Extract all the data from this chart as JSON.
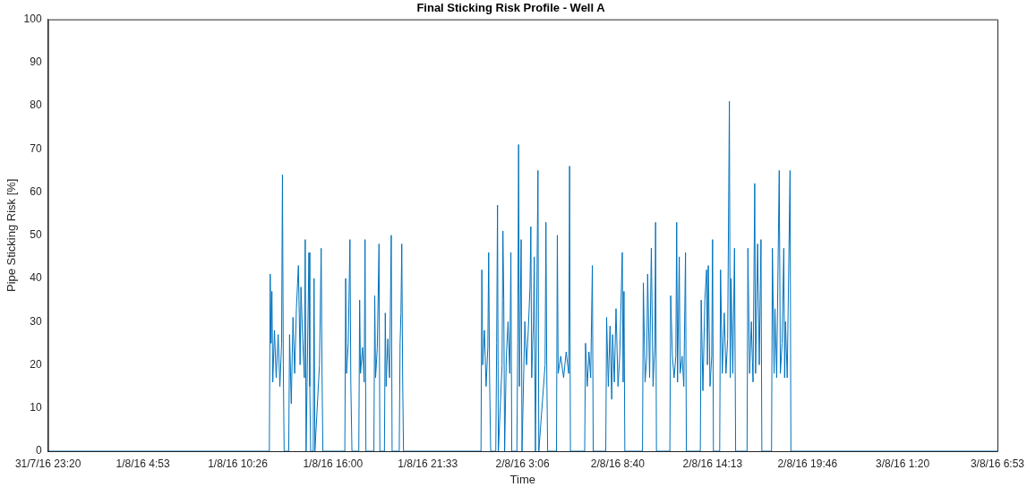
{
  "chart_data": {
    "type": "line",
    "title": "Final Sticking Risk Profile - Well A",
    "xlabel": "Time",
    "ylabel": "Pipe Sticking Risk [%]",
    "xlim": [
      "--07-31T23:20",
      "--08-03T06:53"
    ],
    "xticks": [
      {
        "value": "--07-31T23:20",
        "label": "31/7/16 23:20"
      },
      {
        "value": "--08-01T04:53",
        "label": "1/8/16 4:53"
      },
      {
        "value": "--08-01T10:26",
        "label": "1/8/16 10:26"
      },
      {
        "value": "--08-01T16:00",
        "label": "1/8/16 16:00"
      },
      {
        "value": "--08-01T21:33",
        "label": "1/8/16 21:33"
      },
      {
        "value": "--08-02T03:06",
        "label": "2/8/16 3:06"
      },
      {
        "value": "--08-02T08:40",
        "label": "2/8/16 8:40"
      },
      {
        "value": "--08-02T14:13",
        "label": "2/8/16 14:13"
      },
      {
        "value": "--08-02T19:46",
        "label": "2/8/16 19:46"
      },
      {
        "value": "--08-03T01:20",
        "label": "3/8/16 1:20"
      },
      {
        "value": "--08-03T06:53",
        "label": "3/8/16 6:53"
      }
    ],
    "ylim": [
      0,
      100
    ],
    "yticks": [
      0,
      10,
      20,
      30,
      40,
      50,
      60,
      70,
      80,
      90,
      100
    ],
    "grid": false,
    "legend": false,
    "marker": "none",
    "line_style": "solid",
    "series": [
      {
        "color": "#0072bd",
        "x": [
          "--07-31T23:20",
          "--08-01T12:17",
          "--08-01T12:20",
          "--08-01T12:23",
          "--08-01T12:26",
          "--08-01T12:29",
          "--08-01T12:35",
          "--08-01T12:41",
          "--08-01T12:48",
          "--08-01T12:54",
          "--08-01T13:00",
          "--08-01T13:03",
          "--08-01T13:06",
          "--08-01T13:09",
          "--08-01T13:25",
          "--08-01T13:28",
          "--08-01T13:34",
          "--08-01T13:40",
          "--08-01T13:46",
          "--08-01T13:52",
          "--08-01T13:59",
          "--08-01T14:05",
          "--08-01T14:08",
          "--08-01T14:14",
          "--08-01T14:20",
          "--08-01T14:23",
          "--08-01T14:26",
          "--08-01T14:36",
          "--08-01T14:39",
          "--08-01T14:42",
          "--08-01T14:51",
          "--08-01T14:54",
          "--08-01T14:57",
          "--08-01T15:13",
          "--08-01T15:16",
          "--08-01T15:19",
          "--08-01T15:22",
          "--08-01T15:25",
          "--08-01T16:42",
          "--08-01T16:45",
          "--08-01T16:48",
          "--08-01T16:54",
          "--08-01T17:00",
          "--08-01T17:03",
          "--08-01T17:07",
          "--08-01T17:31",
          "--08-01T17:34",
          "--08-01T17:37",
          "--08-01T17:44",
          "--08-01T17:50",
          "--08-01T17:53",
          "--08-01T17:56",
          "--08-01T18:24",
          "--08-01T18:27",
          "--08-01T18:30",
          "--08-01T18:36",
          "--08-01T18:42",
          "--08-01T18:45",
          "--08-01T19:01",
          "--08-01T19:04",
          "--08-01T19:07",
          "--08-01T19:13",
          "--08-01T19:19",
          "--08-01T19:25",
          "--08-01T19:28",
          "--08-01T19:53",
          "--08-01T19:56",
          "--08-01T19:59",
          "--08-01T20:02",
          "--08-01T20:05",
          "--08-01T20:08",
          "--08-02T00:40",
          "--08-02T00:43",
          "--08-02T00:46",
          "--08-02T00:52",
          "--08-02T00:58",
          "--08-02T01:04",
          "--08-02T01:07",
          "--08-02T01:10",
          "--08-02T01:14",
          "--08-02T01:32",
          "--08-02T01:35",
          "--08-02T01:38",
          "--08-02T01:41",
          "--08-02T01:54",
          "--08-02T01:57",
          "--08-02T02:00",
          "--08-02T02:03",
          "--08-02T02:09",
          "--08-02T02:15",
          "--08-02T02:21",
          "--08-02T02:25",
          "--08-02T02:28",
          "--08-02T02:46",
          "--08-02T02:49",
          "--08-02T02:52",
          "--08-02T02:55",
          "--08-02T03:01",
          "--08-02T03:04",
          "--08-02T03:14",
          "--08-02T03:20",
          "--08-02T03:26",
          "--08-02T03:32",
          "--08-02T03:35",
          "--08-02T03:38",
          "--08-02T03:44",
          "--08-02T03:47",
          "--08-02T03:51",
          "--08-02T04:00",
          "--08-02T04:03",
          "--08-02T04:25",
          "--08-02T04:28",
          "--08-02T04:31",
          "--08-02T04:34",
          "--08-02T05:05",
          "--08-02T05:08",
          "--08-02T05:11",
          "--08-02T05:20",
          "--08-02T05:30",
          "--08-02T05:39",
          "--08-02T05:48",
          "--08-02T05:51",
          "--08-02T05:54",
          "--08-02T06:44",
          "--08-02T06:47",
          "--08-02T06:53",
          "--08-02T06:59",
          "--08-02T07:05",
          "--08-02T07:11",
          "--08-02T07:14",
          "--08-02T07:58",
          "--08-02T08:01",
          "--08-02T08:07",
          "--08-02T08:13",
          "--08-02T08:19",
          "--08-02T08:22",
          "--08-02T08:28",
          "--08-02T08:34",
          "--08-02T08:41",
          "--08-02T08:47",
          "--08-02T08:56",
          "--08-02T08:59",
          "--08-02T09:02",
          "--08-02T09:05",
          "--08-02T10:07",
          "--08-02T10:10",
          "--08-02T10:16",
          "--08-02T10:22",
          "--08-02T10:25",
          "--08-02T10:32",
          "--08-02T10:38",
          "--08-02T10:44",
          "--08-02T10:50",
          "--08-02T10:53",
          "--08-02T10:56",
          "--08-02T11:43",
          "--08-02T11:46",
          "--08-02T11:52",
          "--08-02T11:58",
          "--08-02T12:04",
          "--08-02T12:07",
          "--08-02T12:10",
          "--08-02T12:16",
          "--08-02T12:19",
          "--08-02T12:26",
          "--08-02T12:32",
          "--08-02T12:38",
          "--08-02T12:41",
          "--08-02T13:30",
          "--08-02T13:33",
          "--08-02T13:39",
          "--08-02T13:46",
          "--08-02T13:52",
          "--08-02T13:55",
          "--08-02T13:58",
          "--08-02T14:04",
          "--08-02T14:10",
          "--08-02T14:13",
          "--08-02T14:16",
          "--08-02T14:38",
          "--08-02T14:41",
          "--08-02T14:47",
          "--08-02T14:54",
          "--08-02T15:00",
          "--08-02T15:06",
          "--08-02T15:12",
          "--08-02T15:15",
          "--08-02T15:18",
          "--08-02T15:24",
          "--08-02T15:30",
          "--08-02T15:34",
          "--08-02T16:14",
          "--08-02T16:17",
          "--08-02T16:23",
          "--08-02T16:29",
          "--08-02T16:35",
          "--08-02T16:41",
          "--08-02T16:44",
          "--08-02T16:51",
          "--08-02T16:57",
          "--08-02T17:03",
          "--08-02T17:06",
          "--08-02T17:40",
          "--08-02T17:43",
          "--08-02T17:49",
          "--08-02T17:52",
          "--08-02T17:58",
          "--08-02T18:07",
          "--08-02T18:11",
          "--08-02T18:17",
          "--08-02T18:23",
          "--08-02T18:26",
          "--08-02T18:29",
          "--08-02T18:35",
          "--08-02T18:45",
          "--08-02T18:48",
          "--08-03T06:53"
        ],
        "values": [
          0,
          0,
          41,
          25,
          37,
          16,
          28,
          17,
          27,
          15,
          25,
          64,
          20,
          0,
          0,
          27,
          11,
          31,
          18,
          33,
          43,
          20,
          38,
          26,
          17,
          49,
          0,
          46,
          15,
          0,
          0,
          40,
          0,
          20,
          33,
          47,
          18,
          0,
          0,
          40,
          18,
          25,
          49,
          16,
          0,
          0,
          35,
          18,
          24,
          16,
          49,
          0,
          0,
          36,
          17,
          24,
          48,
          0,
          0,
          32,
          15,
          26,
          17,
          50,
          0,
          0,
          25,
          32,
          48,
          17,
          0,
          0,
          42,
          20,
          28,
          15,
          24,
          46,
          18,
          0,
          0,
          25,
          57,
          0,
          20,
          51,
          35,
          0,
          22,
          30,
          18,
          46,
          0,
          0,
          25,
          71,
          15,
          49,
          0,
          30,
          20,
          28,
          38,
          52,
          17,
          30,
          45,
          0,
          65,
          0,
          20,
          53,
          18,
          0,
          0,
          50,
          18,
          22,
          17,
          23,
          18,
          66,
          0,
          0,
          25,
          15,
          23,
          17,
          43,
          0,
          0,
          31,
          15,
          29,
          12,
          27,
          16,
          33,
          15,
          22,
          46,
          16,
          37,
          0,
          0,
          39,
          16,
          22,
          41,
          17,
          47,
          15,
          24,
          53,
          0,
          0,
          36,
          22,
          17,
          22,
          53,
          16,
          45,
          18,
          22,
          15,
          46,
          0,
          0,
          35,
          14,
          35,
          42,
          20,
          43,
          15,
          22,
          49,
          0,
          0,
          42,
          18,
          32,
          18,
          26,
          81,
          17,
          40,
          18,
          47,
          0,
          0,
          47,
          18,
          30,
          16,
          62,
          18,
          48,
          20,
          49,
          0,
          0,
          47,
          18,
          33,
          17,
          65,
          18,
          25,
          47,
          17,
          30,
          17,
          65,
          0,
          0
        ]
      }
    ]
  }
}
